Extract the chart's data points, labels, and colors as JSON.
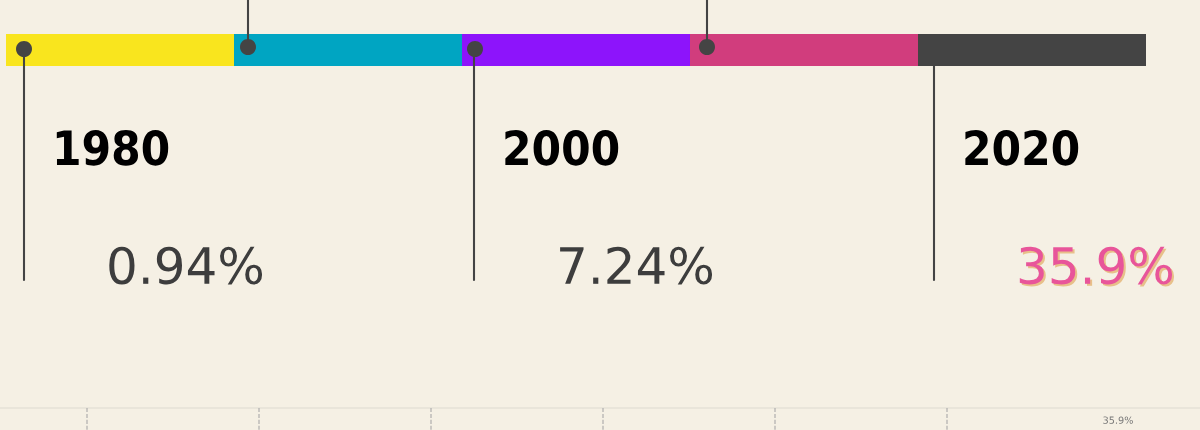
{
  "chart_data": {
    "type": "other",
    "categories": [
      "1980",
      "2000",
      "2020"
    ],
    "values": [
      0.94,
      7.24,
      35.9
    ],
    "value_labels": [
      "0.94%",
      "7.24%",
      "35.9%"
    ],
    "colors": [
      "#3d3d3d",
      "#3d3d3d",
      "#e8559a"
    ],
    "annotations": [
      "35.9%"
    ]
  }
}
